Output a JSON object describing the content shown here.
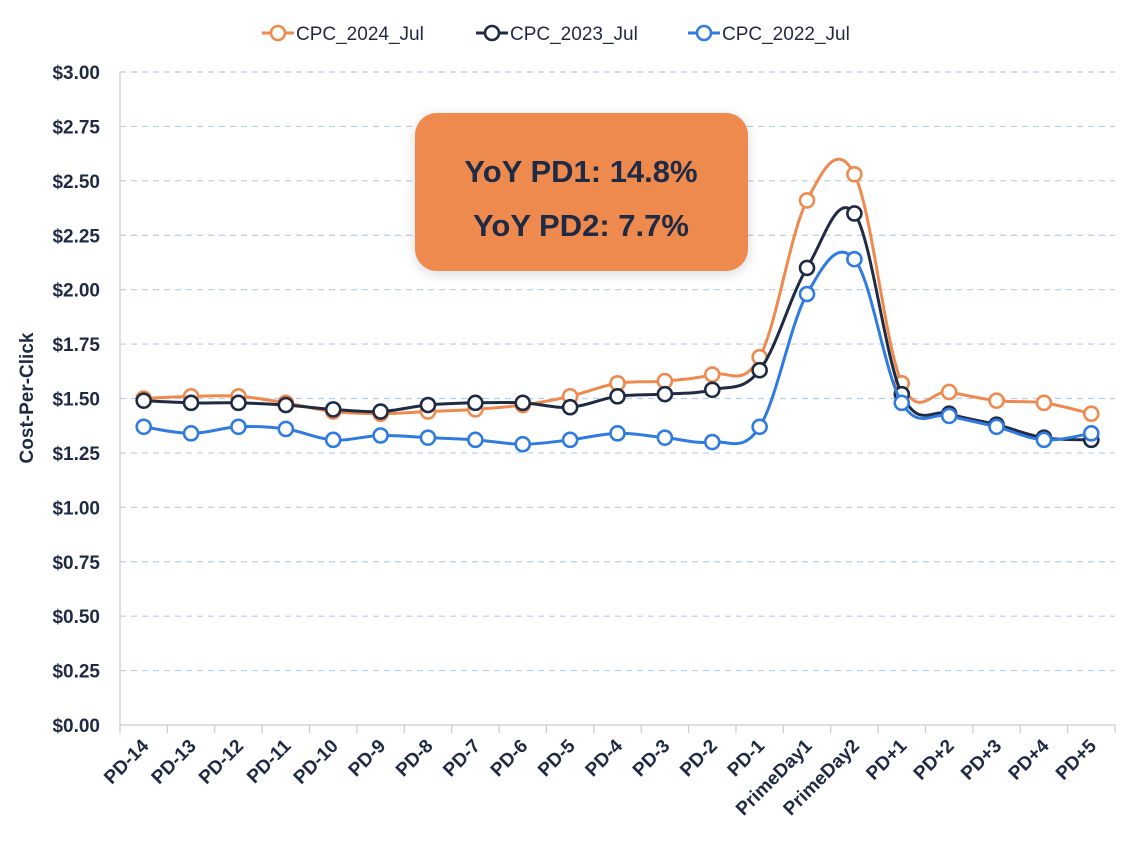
{
  "chart_data": {
    "type": "line",
    "ylabel": "Cost-Per-Click",
    "ylim": [
      0,
      3
    ],
    "yticks": [
      "$0.00",
      "$0.25",
      "$0.50",
      "$0.75",
      "$1.00",
      "$1.25",
      "$1.50",
      "$1.75",
      "$2.00",
      "$2.25",
      "$2.50",
      "$2.75",
      "$3.00"
    ],
    "grid": "horizontal-dashed",
    "legend_position": "top-center",
    "categories": [
      "PD-14",
      "PD-13",
      "PD-12",
      "PD-11",
      "PD-10",
      "PD-9",
      "PD-8",
      "PD-7",
      "PD-6",
      "PD-5",
      "PD-4",
      "PD-3",
      "PD-2",
      "PD-1",
      "PrimeDay1",
      "PrimeDay2",
      "PD+1",
      "PD+2",
      "PD+3",
      "PD+4",
      "PD+5"
    ],
    "series": [
      {
        "name": "CPC_2024_Jul",
        "color": "#ef8a4f",
        "values": [
          1.5,
          1.51,
          1.51,
          1.48,
          1.44,
          1.43,
          1.44,
          1.45,
          1.47,
          1.51,
          1.57,
          1.58,
          1.61,
          1.69,
          2.41,
          2.53,
          1.57,
          1.53,
          1.49,
          1.48,
          1.43
        ]
      },
      {
        "name": "CPC_2023_Jul",
        "color": "#1f2a44",
        "values": [
          1.49,
          1.48,
          1.48,
          1.47,
          1.45,
          1.44,
          1.47,
          1.48,
          1.48,
          1.46,
          1.51,
          1.52,
          1.54,
          1.63,
          2.1,
          2.35,
          1.52,
          1.43,
          1.38,
          1.32,
          1.31
        ]
      },
      {
        "name": "CPC_2022_Jul",
        "color": "#2f7be0",
        "values": [
          1.37,
          1.34,
          1.37,
          1.36,
          1.31,
          1.33,
          1.32,
          1.31,
          1.29,
          1.31,
          1.34,
          1.32,
          1.3,
          1.37,
          1.98,
          2.14,
          1.48,
          1.42,
          1.37,
          1.31,
          1.34
        ]
      }
    ],
    "annotation": {
      "lines": [
        "YoY PD1: 14.8%",
        "YoY PD2: 7.7%"
      ],
      "background": "#ef8a4f"
    }
  }
}
